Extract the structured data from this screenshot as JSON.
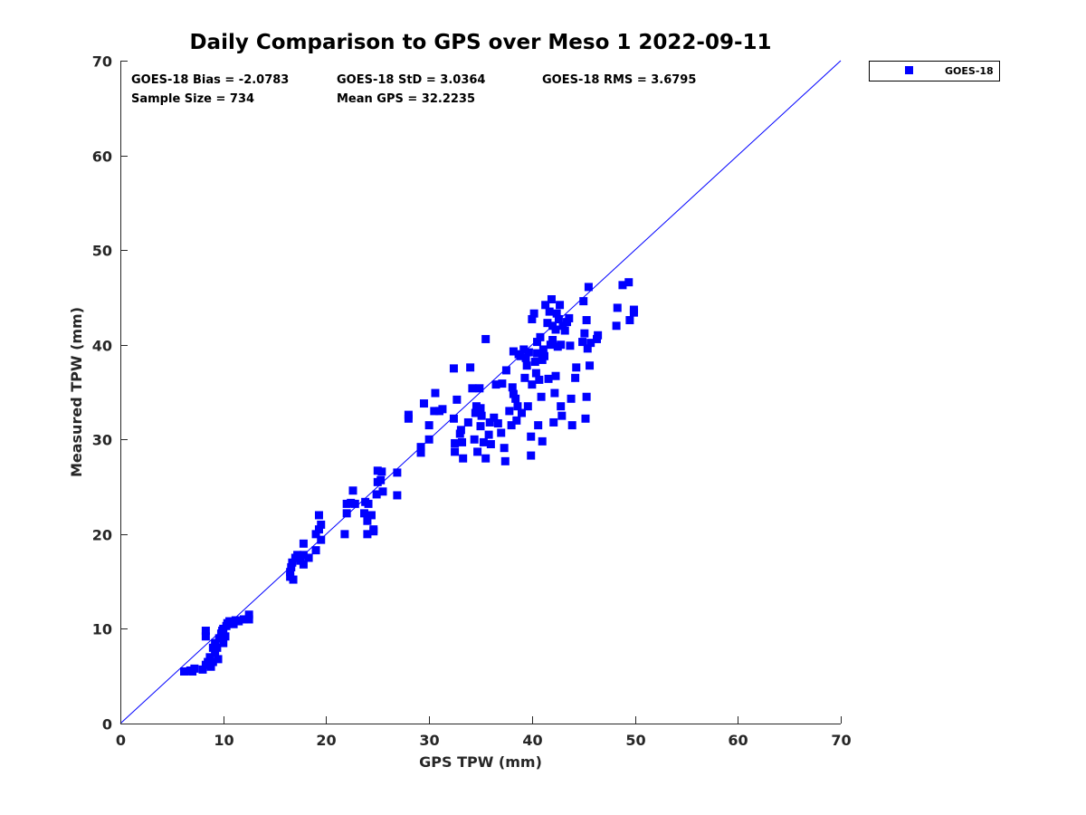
{
  "chart_data": {
    "type": "scatter",
    "title": "Daily Comparison to GPS over Meso 1 2022-09-11",
    "xlabel": "GPS TPW (mm)",
    "ylabel": "Measured TPW (mm)",
    "xlim": [
      0,
      70
    ],
    "ylim": [
      0,
      70
    ],
    "xticks": [
      0,
      10,
      20,
      30,
      40,
      50,
      60,
      70
    ],
    "yticks": [
      0,
      10,
      20,
      30,
      40,
      50,
      60,
      70
    ],
    "grid": false,
    "legend_position": "outside-top-right",
    "reference_line": {
      "name": "1:1 line",
      "from": [
        0,
        0
      ],
      "to": [
        70,
        70
      ],
      "color": "#0000ff"
    },
    "annotations": [
      "GOES-18 Bias = -2.0783",
      "GOES-18 StD = 3.0364",
      "GOES-18 RMS = 3.6795",
      "Sample Size = 734",
      "Mean GPS = 32.2235"
    ],
    "series": [
      {
        "name": "GOES-18",
        "color": "#0000ff",
        "marker": "square",
        "points": [
          [
            6.2,
            5.5
          ],
          [
            6.8,
            5.6
          ],
          [
            7.2,
            5.8
          ],
          [
            7.0,
            5.5
          ],
          [
            8.0,
            5.7
          ],
          [
            8.3,
            6.2
          ],
          [
            8.5,
            6.5
          ],
          [
            8.7,
            7.0
          ],
          [
            9.0,
            6.5
          ],
          [
            9.2,
            7.5
          ],
          [
            9.4,
            8.0
          ],
          [
            9.2,
            8.5
          ],
          [
            9.6,
            9.0
          ],
          [
            8.3,
            9.2
          ],
          [
            8.3,
            9.8
          ],
          [
            9.8,
            9.5
          ],
          [
            10.0,
            10.0
          ],
          [
            10.3,
            10.3
          ],
          [
            10.6,
            10.8
          ],
          [
            11.0,
            10.5
          ],
          [
            11.5,
            10.8
          ],
          [
            12.0,
            11.0
          ],
          [
            12.5,
            11.5
          ],
          [
            12.5,
            11.0
          ],
          [
            9.5,
            6.8
          ],
          [
            10.0,
            8.5
          ],
          [
            10.2,
            9.2
          ],
          [
            9.0,
            8.0
          ],
          [
            8.8,
            6.0
          ],
          [
            11.2,
            10.9
          ],
          [
            10.4,
            10.6
          ],
          [
            9.9,
            9.8
          ],
          [
            16.5,
            16.0
          ],
          [
            16.5,
            15.5
          ],
          [
            16.8,
            15.2
          ],
          [
            16.7,
            17.0
          ],
          [
            17.0,
            17.5
          ],
          [
            17.5,
            17.2
          ],
          [
            17.8,
            17.8
          ],
          [
            17.8,
            19.0
          ],
          [
            18.3,
            17.5
          ],
          [
            17.8,
            16.8
          ],
          [
            19.0,
            18.3
          ],
          [
            19.0,
            20.0
          ],
          [
            19.3,
            20.5
          ],
          [
            19.3,
            22.0
          ],
          [
            19.5,
            19.4
          ],
          [
            19.5,
            21.0
          ],
          [
            16.6,
            16.5
          ],
          [
            17.2,
            17.8
          ],
          [
            21.8,
            20.0
          ],
          [
            22.0,
            22.2
          ],
          [
            22.0,
            23.2
          ],
          [
            22.4,
            23.3
          ],
          [
            22.6,
            24.6
          ],
          [
            22.8,
            23.2
          ],
          [
            23.7,
            22.2
          ],
          [
            23.8,
            23.4
          ],
          [
            24.0,
            21.4
          ],
          [
            24.0,
            20.0
          ],
          [
            24.1,
            23.2
          ],
          [
            24.4,
            22.0
          ],
          [
            24.6,
            20.5
          ],
          [
            24.6,
            20.3
          ],
          [
            24.9,
            24.2
          ],
          [
            25.0,
            26.7
          ],
          [
            25.0,
            25.5
          ],
          [
            25.3,
            25.7
          ],
          [
            25.4,
            26.6
          ],
          [
            25.5,
            24.5
          ],
          [
            26.9,
            26.5
          ],
          [
            26.9,
            24.1
          ],
          [
            28.0,
            32.6
          ],
          [
            28.0,
            32.2
          ],
          [
            29.2,
            28.6
          ],
          [
            29.2,
            29.2
          ],
          [
            29.5,
            33.8
          ],
          [
            30.0,
            31.5
          ],
          [
            30.0,
            30.0
          ],
          [
            30.5,
            33.0
          ],
          [
            30.6,
            34.9
          ],
          [
            31.0,
            33.0
          ],
          [
            31.3,
            33.2
          ],
          [
            32.4,
            37.5
          ],
          [
            32.4,
            32.2
          ],
          [
            32.5,
            29.6
          ],
          [
            32.5,
            28.7
          ],
          [
            32.7,
            34.2
          ],
          [
            33.0,
            30.6
          ],
          [
            33.1,
            31.0
          ],
          [
            33.2,
            29.7
          ],
          [
            33.3,
            28.0
          ],
          [
            33.8,
            31.8
          ],
          [
            34.0,
            37.6
          ],
          [
            34.2,
            35.4
          ],
          [
            34.4,
            30.0
          ],
          [
            34.5,
            32.8
          ],
          [
            34.6,
            33.5
          ],
          [
            34.7,
            28.7
          ],
          [
            34.9,
            35.4
          ],
          [
            35.0,
            31.4
          ],
          [
            35.0,
            33.3
          ],
          [
            35.1,
            32.5
          ],
          [
            35.3,
            29.7
          ],
          [
            35.5,
            28.0
          ],
          [
            35.5,
            40.6
          ],
          [
            35.8,
            30.5
          ],
          [
            35.9,
            31.8
          ],
          [
            36.0,
            29.5
          ],
          [
            36.3,
            32.3
          ],
          [
            36.5,
            35.8
          ],
          [
            36.7,
            31.7
          ],
          [
            37.0,
            30.7
          ],
          [
            37.1,
            35.9
          ],
          [
            37.3,
            29.1
          ],
          [
            37.4,
            27.7
          ],
          [
            37.5,
            37.3
          ],
          [
            37.8,
            33.0
          ],
          [
            38.0,
            31.5
          ],
          [
            38.1,
            35.5
          ],
          [
            38.2,
            34.8
          ],
          [
            38.4,
            34.3
          ],
          [
            38.5,
            32.0
          ],
          [
            38.6,
            33.5
          ],
          [
            38.7,
            39.0
          ],
          [
            38.2,
            39.3
          ],
          [
            38.9,
            38.8
          ],
          [
            39.0,
            32.8
          ],
          [
            39.2,
            39.5
          ],
          [
            39.3,
            36.5
          ],
          [
            39.4,
            38.6
          ],
          [
            39.5,
            37.8
          ],
          [
            39.6,
            33.5
          ],
          [
            39.7,
            39.2
          ],
          [
            39.9,
            30.3
          ],
          [
            39.9,
            28.3
          ],
          [
            40.0,
            42.7
          ],
          [
            40.0,
            35.8
          ],
          [
            40.2,
            43.3
          ],
          [
            40.3,
            38.2
          ],
          [
            40.4,
            37.0
          ],
          [
            40.5,
            40.3
          ],
          [
            40.6,
            31.5
          ],
          [
            40.7,
            36.3
          ],
          [
            40.8,
            40.8
          ],
          [
            40.9,
            34.5
          ],
          [
            41.0,
            29.8
          ],
          [
            41.1,
            39.5
          ],
          [
            41.2,
            38.8
          ],
          [
            41.3,
            44.2
          ],
          [
            41.5,
            42.3
          ],
          [
            41.6,
            36.4
          ],
          [
            41.7,
            43.5
          ],
          [
            41.8,
            40.0
          ],
          [
            41.9,
            44.8
          ],
          [
            42.0,
            40.5
          ],
          [
            42.1,
            31.8
          ],
          [
            42.2,
            34.9
          ],
          [
            42.3,
            36.7
          ],
          [
            42.3,
            41.6
          ],
          [
            42.4,
            43.3
          ],
          [
            42.5,
            39.8
          ],
          [
            42.6,
            42.7
          ],
          [
            42.7,
            44.2
          ],
          [
            42.8,
            40.0
          ],
          [
            42.8,
            33.5
          ],
          [
            42.9,
            32.5
          ],
          [
            43.0,
            42.0
          ],
          [
            43.2,
            41.5
          ],
          [
            43.4,
            42.4
          ],
          [
            43.6,
            42.8
          ],
          [
            43.7,
            39.9
          ],
          [
            43.8,
            34.3
          ],
          [
            43.9,
            31.5
          ],
          [
            44.2,
            36.5
          ],
          [
            44.3,
            37.6
          ],
          [
            44.9,
            40.3
          ],
          [
            45.0,
            44.6
          ],
          [
            45.1,
            41.2
          ],
          [
            45.2,
            32.2
          ],
          [
            45.3,
            34.5
          ],
          [
            45.3,
            42.6
          ],
          [
            45.4,
            39.6
          ],
          [
            45.5,
            46.1
          ],
          [
            45.6,
            37.8
          ],
          [
            45.7,
            40.2
          ],
          [
            46.3,
            40.6
          ],
          [
            46.4,
            41.0
          ],
          [
            48.2,
            42.0
          ],
          [
            48.3,
            43.9
          ],
          [
            48.8,
            46.3
          ],
          [
            49.4,
            46.6
          ],
          [
            49.5,
            42.6
          ],
          [
            49.9,
            43.4
          ],
          [
            49.9,
            43.7
          ],
          [
            41.0,
            38.4
          ],
          [
            40.5,
            39.1
          ],
          [
            42.0,
            42.0
          ]
        ]
      }
    ]
  }
}
